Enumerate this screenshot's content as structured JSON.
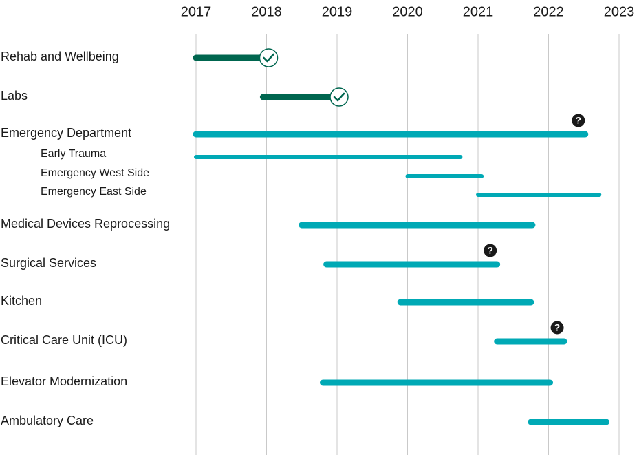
{
  "chart_data": {
    "type": "bar",
    "orientation": "horizontal-timeline",
    "title": "",
    "xlabel": "",
    "ylabel": "",
    "x_ticks": [
      "2017",
      "2018",
      "2019",
      "2020",
      "2021",
      "2022",
      "2023"
    ],
    "xlim": [
      2017,
      2023
    ],
    "grid": true,
    "rows": [
      {
        "label": "Rehab and Wellbeing",
        "level": "main",
        "start": 2017.0,
        "end": 2018.0,
        "status": "complete"
      },
      {
        "label": "Labs",
        "level": "main",
        "start": 2017.95,
        "end": 2019.0,
        "status": "complete"
      },
      {
        "label": "Emergency Department",
        "level": "main",
        "start": 2017.0,
        "end": 2022.52,
        "status": "uncertain"
      },
      {
        "label": "Early Trauma",
        "level": "sub",
        "start": 2017.0,
        "end": 2020.75,
        "status": "in-progress"
      },
      {
        "label": "Emergency West Side",
        "level": "sub",
        "start": 2020.0,
        "end": 2021.05,
        "status": "in-progress"
      },
      {
        "label": "Emergency East Side",
        "level": "sub",
        "start": 2021.0,
        "end": 2022.72,
        "status": "in-progress"
      },
      {
        "label": "Medical Devices Reprocessing",
        "level": "main",
        "start": 2018.5,
        "end": 2021.77,
        "status": "in-progress"
      },
      {
        "label": "Surgical Services",
        "level": "main",
        "start": 2018.85,
        "end": 2021.27,
        "status": "uncertain"
      },
      {
        "label": "Kitchen",
        "level": "main",
        "start": 2019.9,
        "end": 2021.75,
        "status": "in-progress"
      },
      {
        "label": "Critical Care Unit (ICU)",
        "level": "main",
        "start": 2021.27,
        "end": 2022.22,
        "status": "uncertain"
      },
      {
        "label": "Elevator Modernization",
        "level": "main",
        "start": 2018.8,
        "end": 2022.02,
        "status": "in-progress"
      },
      {
        "label": "Ambulatory Care",
        "level": "main",
        "start": 2021.75,
        "end": 2022.82,
        "status": "in-progress"
      }
    ],
    "colors": {
      "complete": "#00664f",
      "in-progress": "#00a9b5",
      "grid": "#c9c9c9",
      "text": "#1a1a1a",
      "marker_uncertain": "#1a1a1a"
    },
    "icons": {
      "complete": "check-circle-icon",
      "uncertain": "question-circle-icon"
    }
  }
}
